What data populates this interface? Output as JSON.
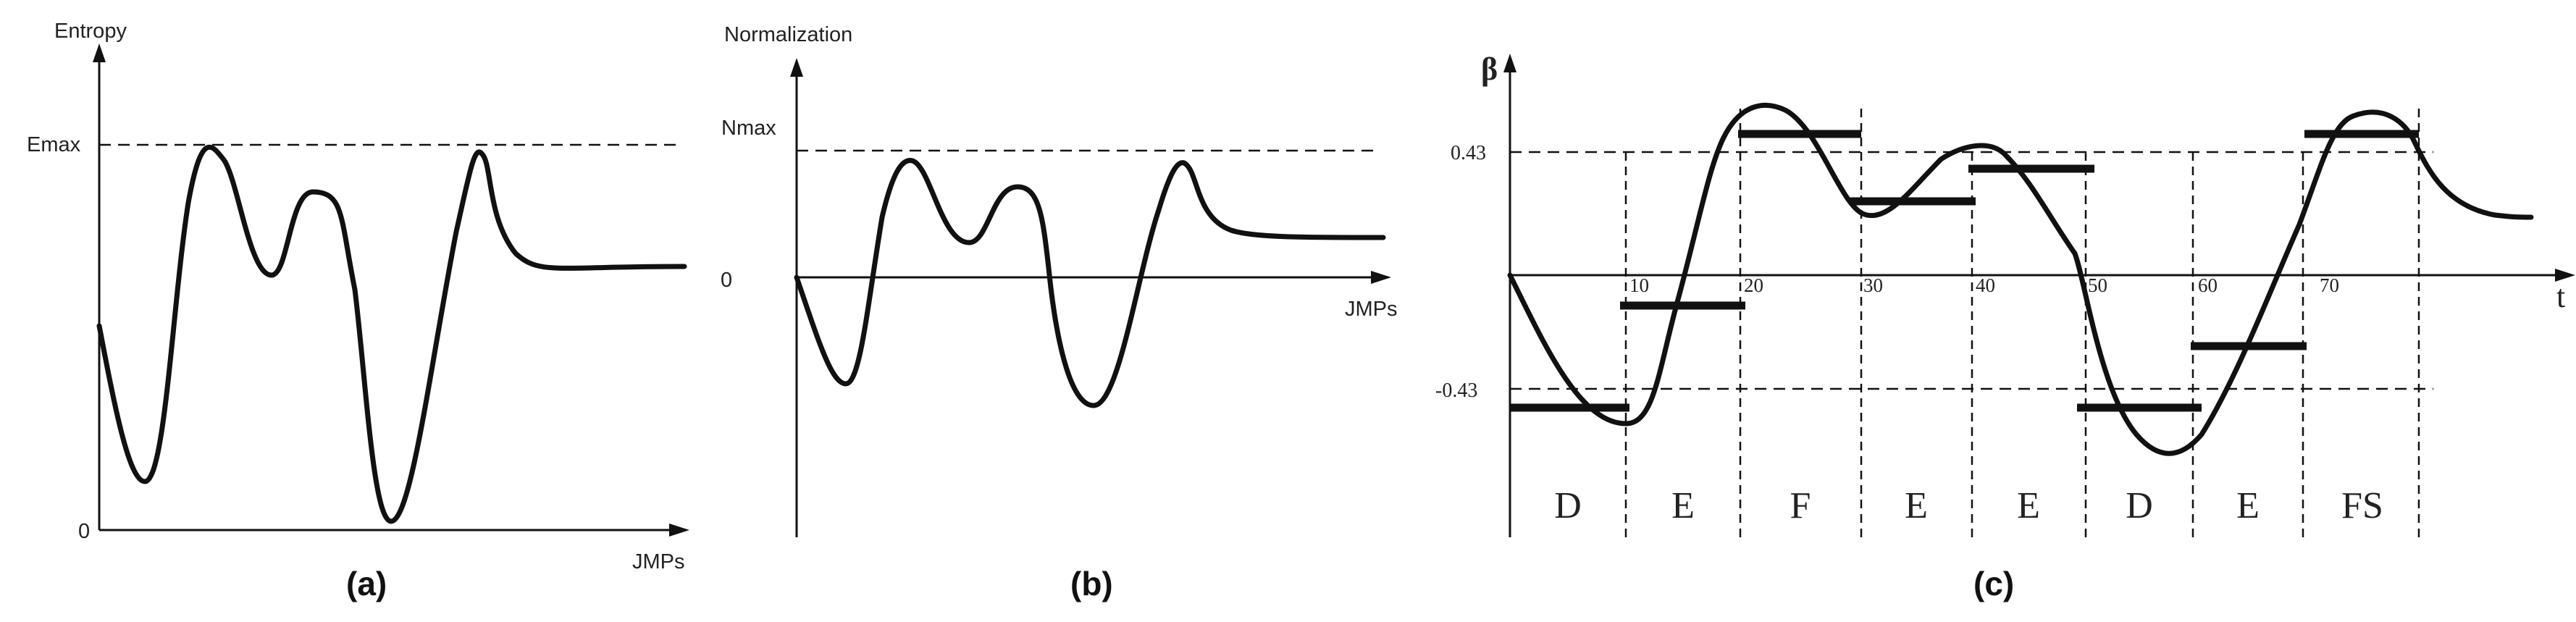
{
  "panel_a": {
    "y_axis_label": "Entropy",
    "x_axis_label": "JMPs",
    "max_label": "Emax",
    "zero_label": "0",
    "caption": "(a)"
  },
  "panel_b": {
    "y_axis_label": "Normalization",
    "x_axis_label": "JMPs",
    "max_label": "Nmax",
    "zero_label": "0",
    "caption": "(b)"
  },
  "panel_c": {
    "y_axis_label": "β",
    "x_axis_label": "t",
    "upper_threshold_label": "0.43",
    "lower_threshold_label": "-0.43",
    "x_ticks": [
      "10",
      "20",
      "30",
      "40",
      "50",
      "60",
      "70"
    ],
    "zones": [
      "D",
      "E",
      "F",
      "E",
      "E",
      "D",
      "E",
      "FS"
    ],
    "caption": "(c)"
  }
}
